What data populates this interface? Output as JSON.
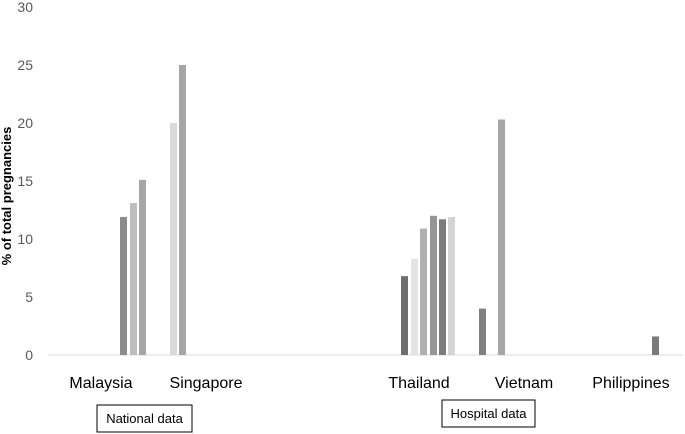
{
  "chart_data": {
    "type": "bar",
    "ylabel": "% of total pregnancies",
    "ylim": [
      0,
      30
    ],
    "yticks": [
      0,
      5,
      10,
      15,
      20,
      25,
      30
    ],
    "grid": false,
    "categories": [
      "Malaysia",
      "Singapore",
      "Thailand",
      "Vietnam",
      "Philippines"
    ],
    "bars": [
      {
        "category": "Malaysia",
        "value": 11.9,
        "color": "#8c8c8c"
      },
      {
        "category": "Malaysia",
        "value": 13.1,
        "color": "#bdbdbd"
      },
      {
        "category": "Malaysia",
        "value": 15.1,
        "color": "#a6a6a6"
      },
      {
        "category": "Singapore",
        "value": 20.0,
        "color": "#d9d9d9"
      },
      {
        "category": "Singapore",
        "value": 25.0,
        "color": "#a6a6a6"
      },
      {
        "category": "Thailand",
        "value": 6.8,
        "color": "#6e6e6e"
      },
      {
        "category": "Thailand",
        "value": 8.3,
        "color": "#e3e3e3"
      },
      {
        "category": "Thailand",
        "value": 10.9,
        "color": "#b0b0b0"
      },
      {
        "category": "Thailand",
        "value": 12.0,
        "color": "#959595"
      },
      {
        "category": "Thailand",
        "value": 11.7,
        "color": "#7c7c7c"
      },
      {
        "category": "Thailand",
        "value": 11.9,
        "color": "#d4d4d4"
      },
      {
        "category": "Vietnam",
        "value": 4.0,
        "color": "#808080"
      },
      {
        "category": "Vietnam",
        "value": 20.3,
        "color": "#a6a6a6"
      },
      {
        "category": "Philippines",
        "value": 1.6,
        "color": "#7a7a7a"
      }
    ],
    "group_labels": [
      "National data",
      "Hospital data"
    ]
  }
}
